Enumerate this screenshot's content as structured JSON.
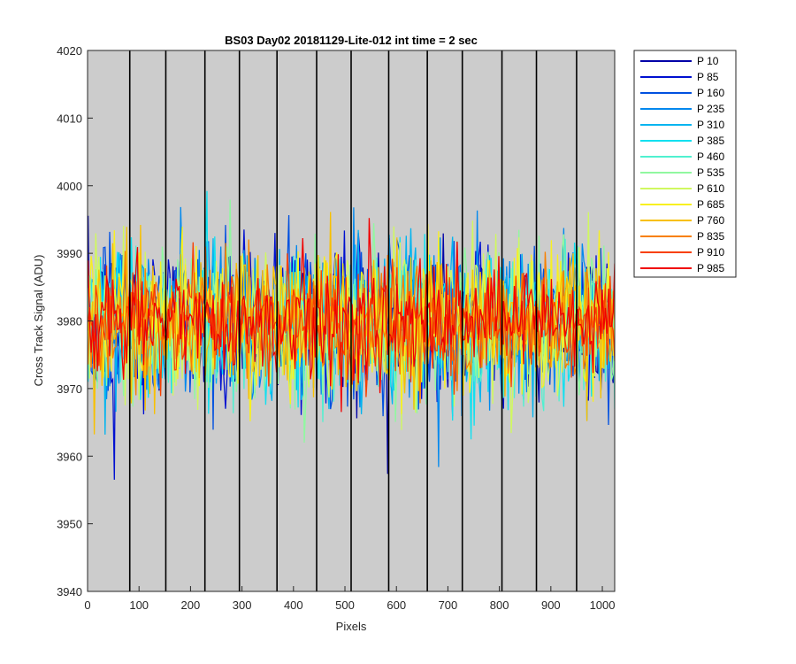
{
  "chart_data": {
    "type": "line",
    "title": "BS03 Day02 20181129-Lite-012 int time = 2 sec",
    "xlabel": "Pixels",
    "ylabel": "Cross Track Signal (ADU)",
    "xlim": [
      0,
      1024
    ],
    "ylim": [
      3940,
      4020
    ],
    "x_ticks": [
      0,
      100,
      200,
      300,
      400,
      500,
      600,
      700,
      800,
      900,
      1000
    ],
    "y_ticks": [
      3940,
      3950,
      3960,
      3970,
      3980,
      3990,
      4000,
      4010,
      4020
    ],
    "vertical_markers": [
      82,
      152,
      228,
      295,
      368,
      445,
      512,
      585,
      660,
      728,
      805,
      872,
      950
    ],
    "background_color": "#cccccc",
    "legend_position": "outside-right",
    "signal_mean": 3980,
    "series": [
      {
        "name": "P 10",
        "color": "#0000a8"
      },
      {
        "name": "P 85",
        "color": "#0010d0"
      },
      {
        "name": "P 160",
        "color": "#0050e0"
      },
      {
        "name": "P 235",
        "color": "#0088ee"
      },
      {
        "name": "P 310",
        "color": "#00b4f0"
      },
      {
        "name": "P 385",
        "color": "#10e0f0"
      },
      {
        "name": "P 460",
        "color": "#50f0d0"
      },
      {
        "name": "P 535",
        "color": "#90f8a0"
      },
      {
        "name": "P 610",
        "color": "#d0f860"
      },
      {
        "name": "P 685",
        "color": "#f8f020"
      },
      {
        "name": "P 760",
        "color": "#f8c000"
      },
      {
        "name": "P 835",
        "color": "#f88000"
      },
      {
        "name": "P 910",
        "color": "#f84000"
      },
      {
        "name": "P 985",
        "color": "#f00000"
      }
    ]
  }
}
